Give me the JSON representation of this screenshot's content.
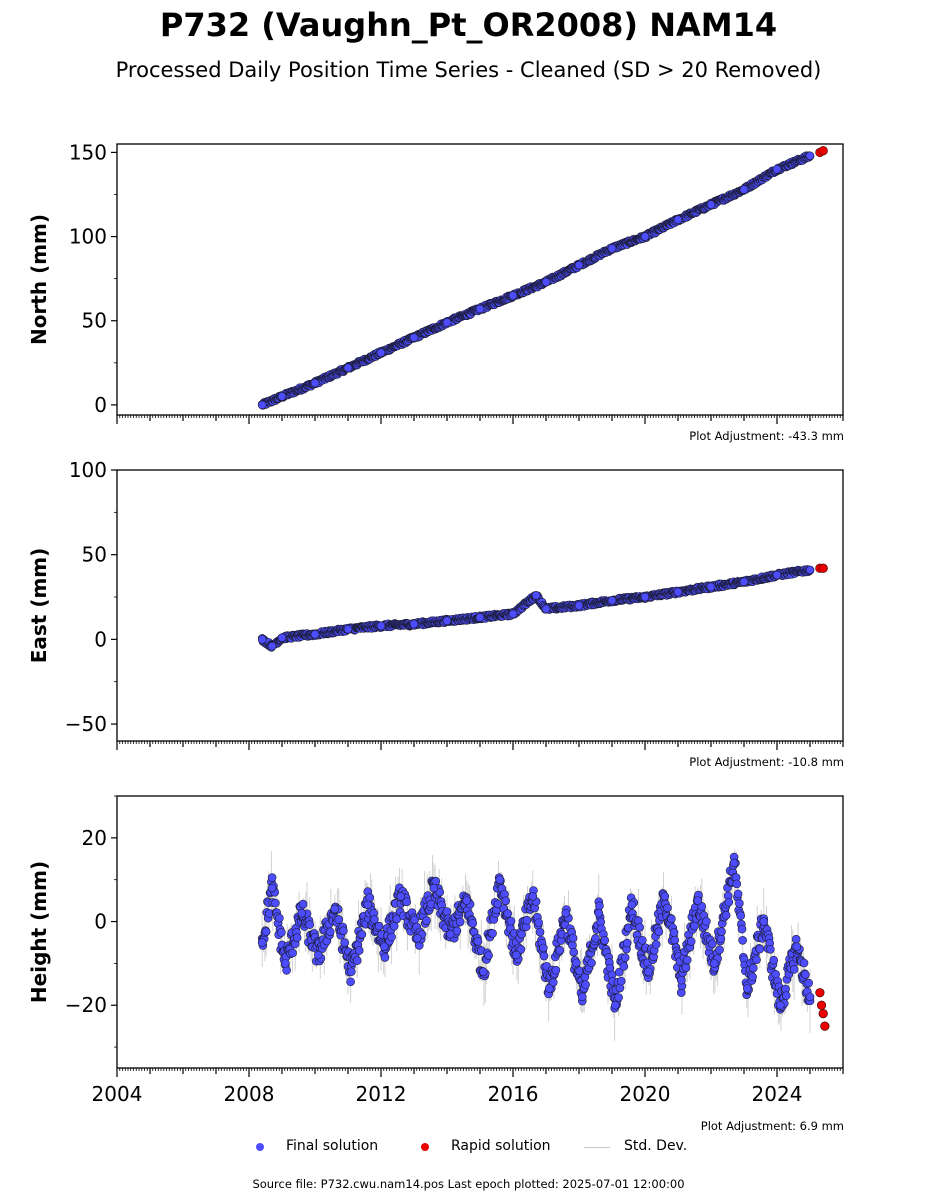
{
  "title": "P732 (Vaughn_Pt_OR2008) NAM14",
  "subtitle": "Processed Daily Position Time Series - Cleaned (SD > 20 Removed)",
  "source_line": "Source file: P732.cwu.nam14.pos  Last epoch plotted: 2025-07-01 12:00:00",
  "legend": {
    "final": "Final solution",
    "rapid": "Rapid solution",
    "std": "Std. Dev."
  },
  "colors": {
    "final": "#4d4dff",
    "rapid": "#ee0000",
    "std": "#c8c8c8",
    "edge": "#1a1a2e"
  },
  "chart_data": [
    {
      "type": "scatter",
      "ylabel": "North (mm)",
      "adjustment": "Plot Adjustment: -43.3 mm",
      "xlim": [
        2004,
        2026
      ],
      "ylim": [
        -6,
        155
      ],
      "yticks": [
        0,
        50,
        100,
        150
      ],
      "ytick_labels": [
        "0",
        "50",
        "100",
        "150"
      ],
      "grid": false,
      "series": [
        {
          "name": "Final solution",
          "role": "final",
          "x": [
            2008.4,
            2009.0,
            2010.0,
            2011.0,
            2012.0,
            2013.0,
            2014.0,
            2015.0,
            2016.0,
            2017.0,
            2018.0,
            2019.0,
            2020.0,
            2021.0,
            2022.0,
            2023.0,
            2024.0,
            2025.0
          ],
          "y": [
            0,
            5,
            13,
            22,
            31,
            40,
            49,
            57,
            65,
            73,
            83,
            93,
            100,
            110,
            119,
            128,
            140,
            148
          ]
        },
        {
          "name": "Rapid solution",
          "role": "rapid",
          "x": [
            2025.3,
            2025.4
          ],
          "y": [
            150,
            151
          ]
        }
      ]
    },
    {
      "type": "scatter",
      "ylabel": "East (mm)",
      "adjustment": "Plot Adjustment: -10.8 mm",
      "xlim": [
        2004,
        2026
      ],
      "ylim": [
        -60,
        100
      ],
      "yticks": [
        -50,
        0,
        50,
        100
      ],
      "ytick_labels": [
        "−50",
        "0",
        "50",
        "100"
      ],
      "grid": false,
      "series": [
        {
          "name": "Final solution",
          "role": "final",
          "x": [
            2008.4,
            2008.7,
            2009.0,
            2010.0,
            2011.0,
            2012.0,
            2013.0,
            2014.0,
            2015.0,
            2016.0,
            2016.7,
            2017.0,
            2018.0,
            2019.0,
            2020.0,
            2021.0,
            2022.0,
            2023.0,
            2024.0,
            2025.0
          ],
          "y": [
            0,
            -4,
            1,
            3,
            6,
            8,
            9,
            11,
            13,
            15,
            26,
            18,
            20,
            23,
            25,
            28,
            31,
            34,
            38,
            41
          ]
        },
        {
          "name": "Rapid solution",
          "role": "rapid",
          "x": [
            2025.3,
            2025.4
          ],
          "y": [
            42,
            42
          ]
        }
      ]
    },
    {
      "type": "scatter",
      "ylabel": "Height (mm)",
      "adjustment": "Plot Adjustment: 6.9 mm",
      "xlim": [
        2004,
        2026
      ],
      "ylim": [
        -35,
        30
      ],
      "yticks": [
        -20,
        0,
        20
      ],
      "ytick_labels": [
        "−20",
        "0",
        "20"
      ],
      "xticks": [
        2004,
        2008,
        2012,
        2016,
        2020,
        2024
      ],
      "xtick_labels": [
        "2004",
        "2008",
        "2012",
        "2016",
        "2020",
        "2024"
      ],
      "grid": false,
      "series": [
        {
          "name": "Final solution",
          "role": "final",
          "x": [
            2008.4,
            2008.7,
            2009.1,
            2009.6,
            2010.1,
            2010.6,
            2011.1,
            2011.6,
            2012.1,
            2012.6,
            2013.1,
            2013.6,
            2014.1,
            2014.6,
            2015.1,
            2015.6,
            2016.1,
            2016.6,
            2017.1,
            2017.6,
            2018.1,
            2018.6,
            2019.1,
            2019.6,
            2020.1,
            2020.6,
            2021.1,
            2021.6,
            2022.1,
            2022.7,
            2023.1,
            2023.6,
            2024.1,
            2024.6,
            2025.0
          ],
          "y": [
            -5,
            8,
            -10,
            2,
            -8,
            3,
            -12,
            4,
            -6,
            6,
            -4,
            8,
            -3,
            5,
            -12,
            10,
            -8,
            6,
            -16,
            2,
            -18,
            2,
            -20,
            4,
            -12,
            6,
            -14,
            5,
            -10,
            14,
            -16,
            0,
            -20,
            -6,
            -18
          ]
        },
        {
          "name": "Rapid solution",
          "role": "rapid",
          "x": [
            2025.3,
            2025.35,
            2025.4,
            2025.45
          ],
          "y": [
            -17,
            -20,
            -22,
            -25
          ]
        }
      ]
    }
  ]
}
